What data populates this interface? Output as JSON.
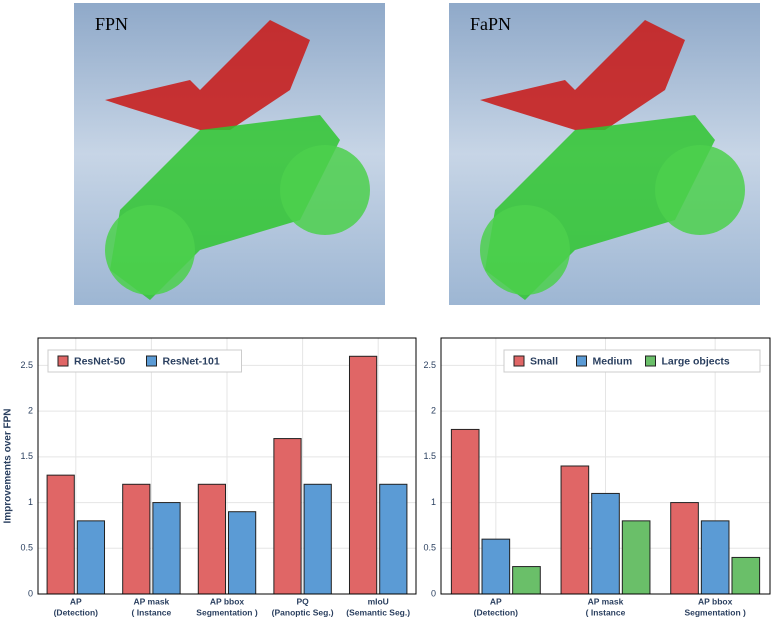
{
  "images": [
    {
      "label": "FPN"
    },
    {
      "label": "FaPN"
    }
  ],
  "chart_data": [
    {
      "type": "bar",
      "y_label": "Improvements over FPN",
      "categories": [
        [
          "AP",
          "(Detection)"
        ],
        [
          "AP mask",
          "(    Instance"
        ],
        [
          "AP bbox",
          "Segmentation   )"
        ],
        [
          "PQ",
          "(Panoptic Seg.)"
        ],
        [
          "mIoU",
          "(Semantic Seg.)"
        ]
      ],
      "series": [
        {
          "name": "ResNet-50",
          "color": "#e06666",
          "values": [
            1.3,
            1.2,
            1.2,
            1.7,
            2.6
          ]
        },
        {
          "name": "ResNet-101",
          "color": "#5b9bd5",
          "values": [
            0.8,
            1.0,
            0.9,
            1.2,
            1.2
          ]
        }
      ],
      "ylim": [
        0,
        2.8
      ],
      "yticks": [
        0,
        0.5,
        1,
        1.5,
        2,
        2.5
      ],
      "grid": true,
      "legend": "upper left"
    },
    {
      "type": "bar",
      "categories": [
        [
          "AP",
          "(Detection)"
        ],
        [
          "AP mask",
          "(    Instance"
        ],
        [
          "AP bbox",
          "Segmentation   )"
        ]
      ],
      "series": [
        {
          "name": "Small",
          "color": "#e06666",
          "values": [
            1.8,
            1.4,
            1.0
          ]
        },
        {
          "name": "Medium",
          "color": "#5b9bd5",
          "values": [
            0.6,
            1.1,
            0.8
          ]
        },
        {
          "name": "Large objects",
          "color": "#6abf69",
          "values": [
            0.3,
            0.8,
            0.4
          ]
        }
      ],
      "ylim": [
        0,
        2.8
      ],
      "yticks": [
        0,
        0.5,
        1,
        1.5,
        2,
        2.5
      ],
      "grid": true,
      "legend": "upper right"
    }
  ]
}
